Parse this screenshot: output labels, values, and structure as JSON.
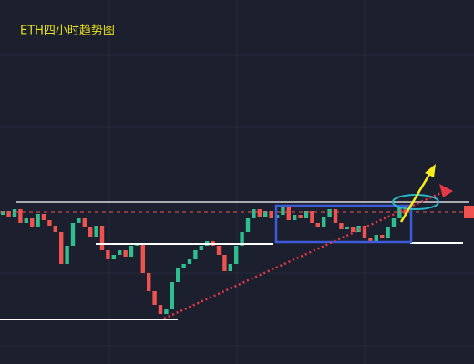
{
  "chart_data": {
    "type": "candlestick",
    "title": "ETH四小时趋势图",
    "ylim": [
      0,
      100
    ],
    "up_color": "#2fbf8f",
    "down_color": "#ef5350",
    "open": [
      41,
      42,
      40.5,
      42.5,
      38.75,
      40,
      37.5,
      41.25,
      39.5,
      38,
      36.25,
      27.5,
      32.5,
      38.75,
      40,
      37.5,
      35,
      38,
      31.25,
      28.75,
      30,
      31.25,
      29.5,
      32.5,
      33,
      25,
      20,
      16.25,
      13.75,
      15,
      22.5,
      26.25,
      27.5,
      28.75,
      31.25,
      32.5,
      33.75,
      32.5,
      30,
      25.5,
      27.5,
      32.5,
      36.25,
      40,
      42.5,
      40.5,
      42,
      40,
      41,
      43,
      39.5,
      41,
      40,
      42,
      38.75,
      37.5,
      40.5,
      42.5,
      38.75,
      37,
      37.5,
      36.25,
      38,
      34.5,
      33.75,
      35.5,
      34.5,
      37.5,
      40,
      43.75
    ],
    "close": [
      42,
      40.5,
      42.5,
      38.75,
      40,
      37.5,
      41.25,
      39.5,
      38,
      36.25,
      27.5,
      32.5,
      38.75,
      40,
      37.5,
      35,
      38,
      31.25,
      28.75,
      30,
      31.25,
      29.5,
      32.5,
      33,
      25,
      20,
      16.25,
      13.75,
      15,
      22.5,
      26.25,
      27.5,
      28.75,
      31.25,
      32.5,
      33.75,
      32.5,
      30,
      25.5,
      27.5,
      32.5,
      36.25,
      40,
      42.5,
      40.5,
      42,
      40,
      41,
      43,
      39.5,
      41,
      40,
      42,
      38.75,
      37.5,
      40.5,
      42.5,
      38.75,
      37,
      37.5,
      36.25,
      38,
      34.5,
      33.75,
      35.5,
      34.5,
      37.5,
      40,
      43.75,
      41.25
    ]
  }
}
